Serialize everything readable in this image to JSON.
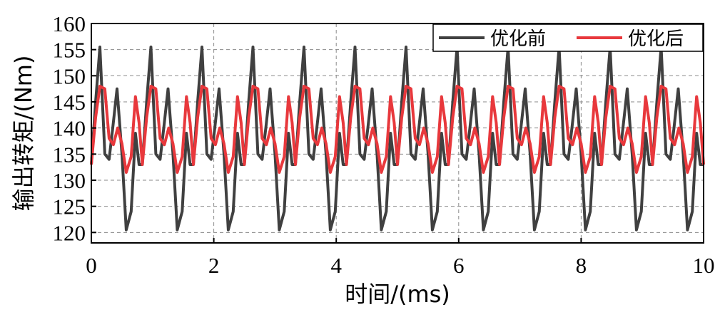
{
  "chart_data": {
    "type": "line",
    "title": "",
    "xlabel": "时间/(ms)",
    "ylabel": "输出转矩/(Nm)",
    "xlim": [
      0,
      10
    ],
    "ylim": [
      118,
      160
    ],
    "x_ticks": [
      "0",
      "2",
      "4",
      "6",
      "8",
      "10"
    ],
    "y_ticks": [
      "120",
      "125",
      "130",
      "135",
      "140",
      "145",
      "150",
      "155",
      "160"
    ],
    "grid": true,
    "legend_position": "top-right",
    "period_ms": 0.8333,
    "series": [
      {
        "name": "优化前",
        "color": "#404040",
        "period_ms": 0.8333,
        "x": [
          0,
          0.07,
          0.14,
          0.22,
          0.29,
          0.35,
          0.42,
          0.5,
          0.57,
          0.65,
          0.72,
          0.78,
          0.833
        ],
        "values": [
          133,
          145,
          155.5,
          135,
          134,
          140,
          147.5,
          135,
          120.5,
          124,
          139,
          133,
          133
        ]
      },
      {
        "name": "优化后",
        "color": "#e8383c",
        "period_ms": 0.8333,
        "x": [
          0,
          0.07,
          0.14,
          0.22,
          0.29,
          0.36,
          0.43,
          0.5,
          0.57,
          0.65,
          0.72,
          0.78,
          0.833
        ],
        "values": [
          133,
          142,
          148,
          147.5,
          138,
          136.8,
          140,
          137,
          131.5,
          134.5,
          146,
          141,
          133
        ]
      }
    ]
  }
}
